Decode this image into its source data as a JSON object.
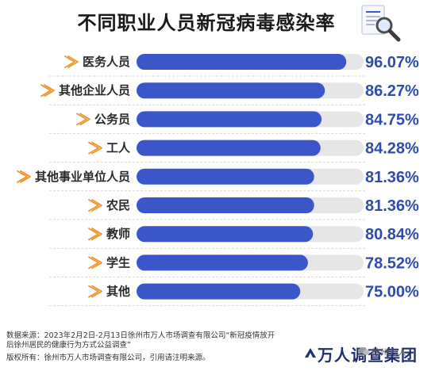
{
  "chart_data": {
    "type": "bar",
    "orientation": "horizontal",
    "title": "不同职业人员新冠病毒感染率",
    "categories": [
      "医务人员",
      "其他企业人员",
      "公务员",
      "工人",
      "其他事业单位人员",
      "农民",
      "教师",
      "学生",
      "其他"
    ],
    "values": [
      96.07,
      86.27,
      84.75,
      84.28,
      81.36,
      81.36,
      80.84,
      78.52,
      75.0
    ],
    "value_labels": [
      "96.07%",
      "86.27%",
      "84.75%",
      "84.28%",
      "81.36%",
      "81.36%",
      "80.84%",
      "78.52%",
      "75.00%"
    ],
    "xlim": [
      0,
      100
    ],
    "unit": "%",
    "grid": false,
    "legend": "none",
    "bar_color": "#3a56c9",
    "track_color": "#e6e6e6",
    "arrow_color": "#f0952e",
    "value_color": "#2f4bb0"
  },
  "footer": {
    "source_line1": "数据来源：2023年2月2日-2月13日徐州市万人市场调查有限公司“新冠疫情放开",
    "source_line2": "后徐州居民的健康行为方式公益调查”",
    "copyright": "版权所有：徐州市万人市场调查有限公司，引用请注明来源。"
  },
  "brand": {
    "name": "万人调查集团",
    "wechat": "徐州万人",
    "accent": "#1f2f6e"
  },
  "icons": {
    "title_icon": "magnifier-document-icon",
    "row_marker": "arrow-outline-icon"
  }
}
